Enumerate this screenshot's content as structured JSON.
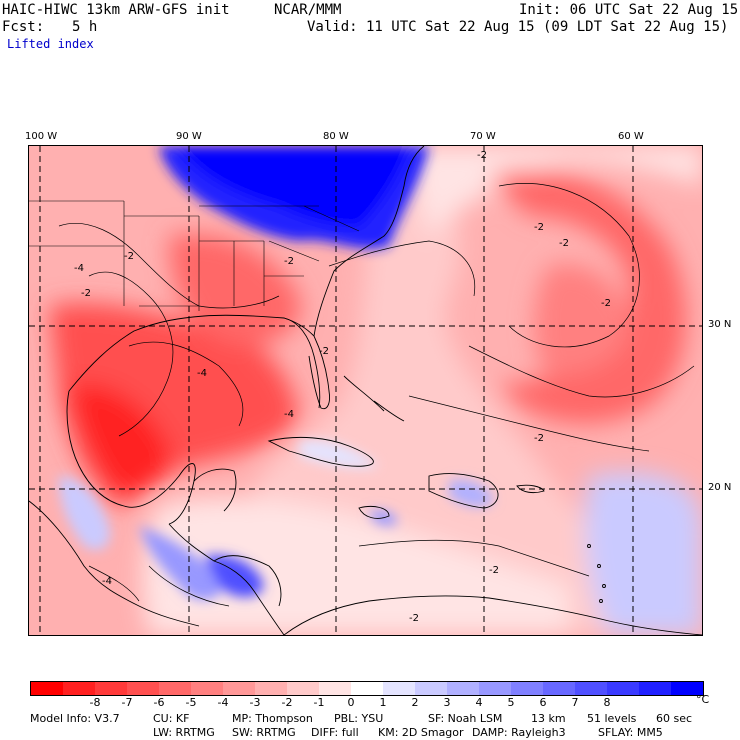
{
  "header": {
    "model_title": "HAIC-HIWC 13km ARW-GFS init",
    "org": "NCAR/MMM",
    "init": "Init: 06 UTC Sat 22 Aug 15",
    "fcst_label": "Fcst:",
    "fcst_value": "5 h",
    "valid": "Valid: 11 UTC Sat 22 Aug 15 (09 LDT Sat 22 Aug 15)",
    "field": "Lifted index"
  },
  "map": {
    "lon_labels": [
      "100 W",
      "90 W",
      "80 W",
      "70 W",
      "60 W"
    ],
    "lat_labels": [
      "30 N",
      "20 N"
    ],
    "contour_labels": [
      "-4",
      "-2",
      "-2",
      "-2",
      "-2",
      "-2",
      "-2",
      "-4",
      "-2",
      "-2",
      "-4",
      "-2",
      "-2",
      "-4",
      "-2"
    ]
  },
  "colorbar": {
    "colors": [
      "#ff0000",
      "#ff2020",
      "#ff3a3a",
      "#ff5050",
      "#ff6868",
      "#ff8080",
      "#ff9898",
      "#ffb0b0",
      "#ffcaca",
      "#ffe4e4",
      "#ffffff",
      "#e4e4ff",
      "#cacaff",
      "#b0b0ff",
      "#9898ff",
      "#8080ff",
      "#6868ff",
      "#5050ff",
      "#3a3aff",
      "#2020ff",
      "#0000ff"
    ],
    "ticks": [
      "-8",
      "-7",
      "-6",
      "-5",
      "-4",
      "-3",
      "-2",
      "-1",
      "0",
      "1",
      "2",
      "3",
      "4",
      "5",
      "6",
      "7",
      "8"
    ],
    "unit": "°C"
  },
  "footer": {
    "line1": [
      "Model Info: V3.7",
      "CU: KF",
      "MP: Thompson",
      "PBL: YSU",
      "SF: Noah LSM",
      "13 km",
      "51 levels",
      "60 sec"
    ],
    "line2": [
      "LW: RRTMG",
      "SW: RRTMG",
      "DIFF: full",
      "KM: 2D Smagor",
      "DAMP: Rayleigh3",
      "SFLAY: MM5"
    ]
  }
}
